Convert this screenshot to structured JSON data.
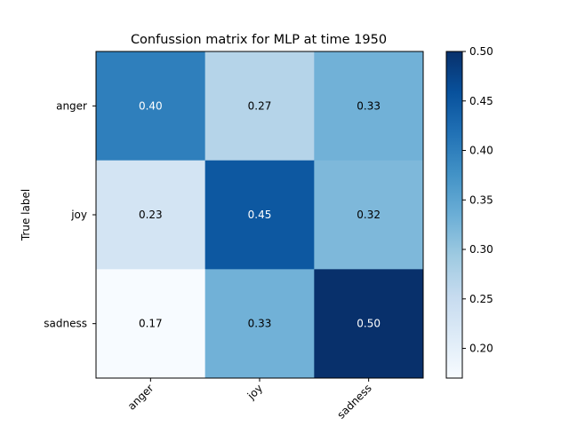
{
  "chart_data": {
    "type": "heatmap",
    "title": "Confussion matrix for MLP at time 1950",
    "ylabel": "True label",
    "xlabel": "",
    "x_categories": [
      "anger",
      "joy",
      "sadness"
    ],
    "y_categories": [
      "anger",
      "joy",
      "sadness"
    ],
    "values": [
      [
        0.4,
        0.27,
        0.33
      ],
      [
        0.23,
        0.45,
        0.32
      ],
      [
        0.17,
        0.33,
        0.5
      ]
    ],
    "value_labels": [
      [
        "0.40",
        "0.27",
        "0.33"
      ],
      [
        "0.23",
        "0.45",
        "0.32"
      ],
      [
        "0.17",
        "0.33",
        "0.50"
      ]
    ],
    "colormap": "Blues",
    "vmin": 0.17,
    "vmax": 0.5,
    "colorbar": {
      "ticks": [
        0.2,
        0.25,
        0.3,
        0.35,
        0.4,
        0.45,
        0.5
      ],
      "tick_labels": [
        "0.20",
        "0.25",
        "0.30",
        "0.35",
        "0.40",
        "0.45",
        "0.50"
      ]
    }
  }
}
